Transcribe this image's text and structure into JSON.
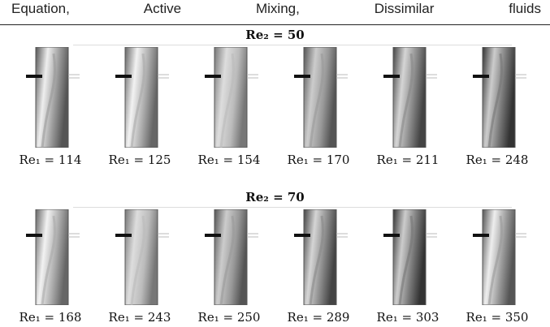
{
  "header_text": "Equation, Active Mixing, Dissimilar fluids",
  "panels": [
    {
      "title": "Re₂ = 50",
      "labels": [
        "Re₁ = 114",
        "Re₁ = 125",
        "Re₁ = 154",
        "Re₁ = 170",
        "Re₁ = 211",
        "Re₁ = 248"
      ]
    },
    {
      "title": "Re₂ = 70",
      "labels": [
        "Re₁ = 168",
        "Re₁ = 243",
        "Re₁ = 250",
        "Re₁ = 289",
        "Re₁ = 303",
        "Re₁ = 350"
      ]
    }
  ]
}
